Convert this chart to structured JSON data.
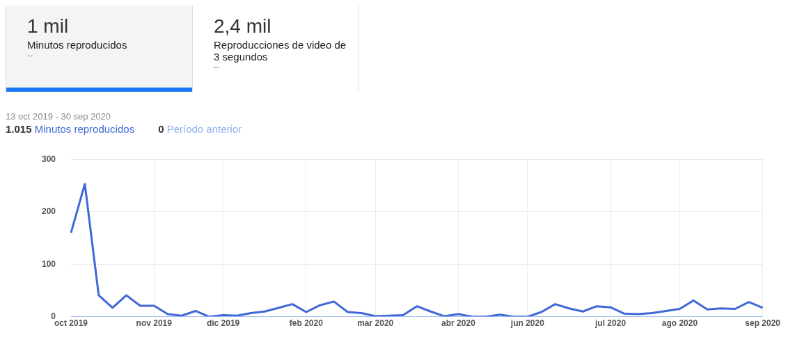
{
  "chart_data": [
    {
      "type": "other",
      "annotations": [
        "1 mil",
        "Minutos reproducidos",
        "--",
        "2,4 mil",
        "Reproducciones de video de 3 segundos",
        "--"
      ]
    },
    {
      "type": "line",
      "subtitle": "13 oct 2019 - 30 sep 2020",
      "annotations": [
        "1.015",
        "0"
      ],
      "categories": [
        "oct 2019",
        null,
        null,
        null,
        null,
        null,
        "nov 2019",
        null,
        null,
        null,
        null,
        "dic 2019",
        null,
        null,
        null,
        null,
        null,
        "feb 2020",
        null,
        null,
        null,
        null,
        "mar 2020",
        null,
        null,
        null,
        null,
        null,
        "abr 2020",
        null,
        null,
        null,
        null,
        "jun 2020",
        null,
        null,
        null,
        null,
        null,
        "jul 2020",
        null,
        null,
        null,
        null,
        "ago 2020",
        null,
        null,
        null,
        null,
        null,
        "sep 2020"
      ],
      "series": [
        {
          "name": "Minutos reproducidos",
          "color": "#3f68d8",
          "values": [
            160,
            253,
            41,
            17,
            41,
            21,
            21,
            5,
            2,
            11,
            0,
            3,
            2,
            7,
            10,
            17,
            24,
            9,
            22,
            29,
            9,
            7,
            1,
            2,
            3,
            20,
            10,
            1,
            5,
            0,
            0,
            4,
            0,
            0,
            9,
            24,
            16,
            10,
            20,
            18,
            6,
            5,
            7,
            11,
            15,
            31,
            14,
            16,
            15,
            28,
            17
          ]
        },
        {
          "name": "Período anterior",
          "color": "#8fb0f0",
          "values": [
            0,
            0,
            0,
            0,
            0,
            0,
            0,
            0,
            0,
            0,
            0,
            0,
            0,
            0,
            0,
            0,
            0,
            0,
            0,
            0,
            0,
            0,
            0,
            0,
            0,
            0,
            0,
            0,
            0,
            0,
            0,
            0,
            0,
            0,
            0,
            0,
            0,
            0,
            0,
            0,
            0,
            0,
            0,
            0,
            0,
            0,
            0,
            0,
            0,
            0,
            0
          ]
        }
      ],
      "ylim": [
        0,
        300
      ],
      "yticks": [
        0,
        100,
        200,
        300
      ],
      "grid": true,
      "legend": "top left",
      "marker": "none",
      "line_style": "solid"
    }
  ]
}
